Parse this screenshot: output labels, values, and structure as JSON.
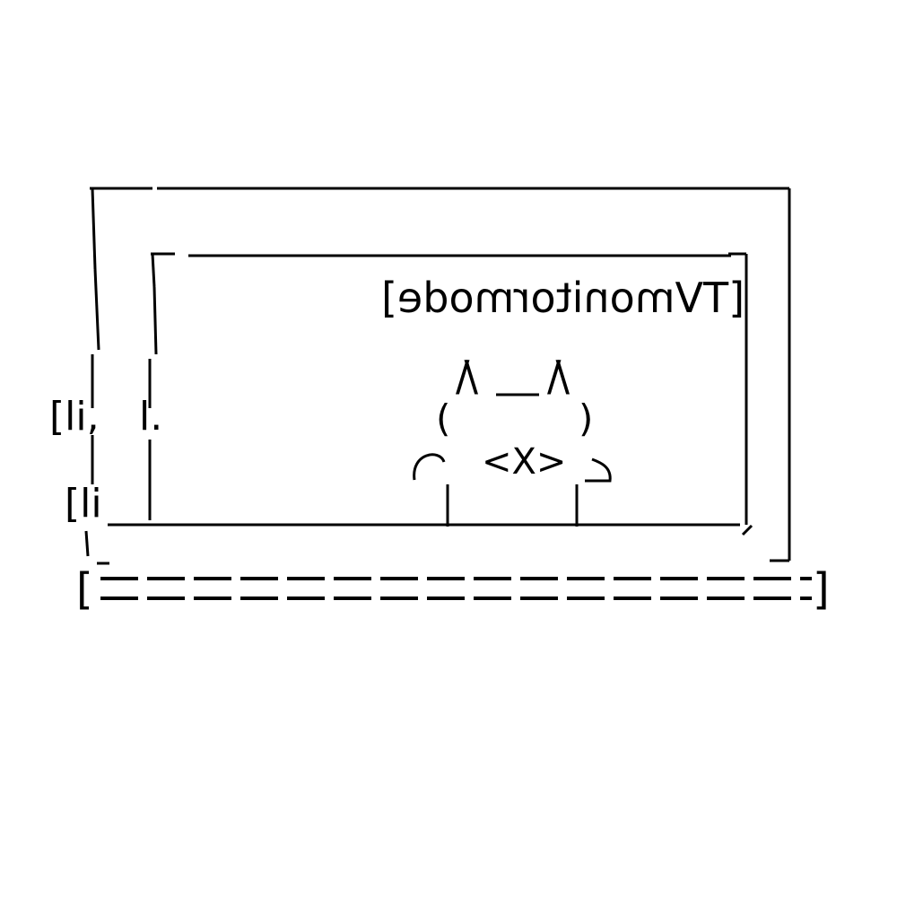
{
  "art": {
    "screen_label": "[TVmonitormode]",
    "left_bracket_1": "[li,",
    "left_bracket_1b": "l.",
    "left_bracket_2": "[li",
    "left_bracket_3": "l,_",
    "cat_ear_left": "/\\",
    "cat_ear_right": "/\\",
    "cat_paren_left": "(",
    "cat_paren_right": ")",
    "cat_face": "<X>",
    "base_left_bracket": "[",
    "base_right_bracket": "]"
  },
  "colors": {
    "ink": "#000000",
    "background": "#ffffff"
  }
}
